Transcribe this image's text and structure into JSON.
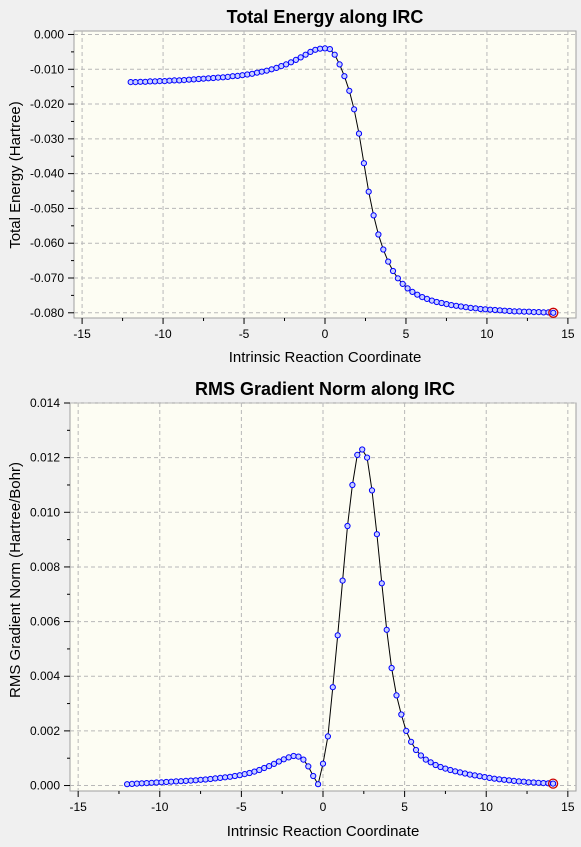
{
  "chart_data": [
    {
      "type": "line",
      "title": "Total Energy along IRC",
      "xlabel": "Intrinsic Reaction Coordinate",
      "ylabel": "Total Energy (Hartree)",
      "xlim": [
        -15.5,
        15.5
      ],
      "ylim": [
        -0.0815,
        0.001
      ],
      "xticks": [
        -15,
        -10,
        -5,
        0,
        5,
        10,
        15
      ],
      "xtick_labels": [
        "-15",
        "-10",
        "-5",
        "0",
        "5",
        "10",
        "15"
      ],
      "yticks": [
        0,
        -0.01,
        -0.02,
        -0.03,
        -0.04,
        -0.05,
        -0.06,
        -0.07,
        -0.08
      ],
      "ytick_labels": [
        "0.000",
        "-0.010",
        "-0.020",
        "-0.030",
        "-0.040",
        "-0.050",
        "-0.060",
        "-0.070",
        "-0.080"
      ],
      "grid": true,
      "series": [
        {
          "color": "#0000ff",
          "x": [
            -12.0,
            -11.7,
            -11.4,
            -11.1,
            -10.8,
            -10.5,
            -10.2,
            -9.9,
            -9.6,
            -9.3,
            -9.0,
            -8.7,
            -8.4,
            -8.1,
            -7.8,
            -7.5,
            -7.2,
            -6.9,
            -6.6,
            -6.3,
            -6.0,
            -5.7,
            -5.4,
            -5.1,
            -4.8,
            -4.5,
            -4.2,
            -3.9,
            -3.6,
            -3.3,
            -3.0,
            -2.7,
            -2.4,
            -2.1,
            -1.8,
            -1.5,
            -1.2,
            -0.9,
            -0.6,
            -0.3,
            0.0,
            0.3,
            0.6,
            0.9,
            1.2,
            1.5,
            1.8,
            2.1,
            2.4,
            2.7,
            3.0,
            3.3,
            3.6,
            3.9,
            4.2,
            4.5,
            4.8,
            5.1,
            5.4,
            5.7,
            6.0,
            6.3,
            6.6,
            6.9,
            7.2,
            7.5,
            7.8,
            8.1,
            8.4,
            8.7,
            9.0,
            9.3,
            9.6,
            9.9,
            10.2,
            10.5,
            10.8,
            11.1,
            11.4,
            11.7,
            12.0,
            12.3,
            12.6,
            12.9,
            13.2,
            13.5,
            13.8,
            14.1
          ],
          "y": [
            -0.0137,
            -0.0137,
            -0.0136,
            -0.0136,
            -0.0135,
            -0.0135,
            -0.0134,
            -0.0134,
            -0.0133,
            -0.0132,
            -0.0132,
            -0.0131,
            -0.013,
            -0.0129,
            -0.0128,
            -0.0127,
            -0.0126,
            -0.0125,
            -0.0124,
            -0.0123,
            -0.0122,
            -0.012,
            -0.0119,
            -0.0117,
            -0.0115,
            -0.0113,
            -0.011,
            -0.0107,
            -0.0104,
            -0.01,
            -0.0096,
            -0.0091,
            -0.0086,
            -0.008,
            -0.0073,
            -0.0066,
            -0.0058,
            -0.005,
            -0.0044,
            -0.0041,
            -0.004,
            -0.0042,
            -0.0058,
            -0.0086,
            -0.012,
            -0.0162,
            -0.0215,
            -0.0285,
            -0.037,
            -0.0452,
            -0.052,
            -0.0575,
            -0.0618,
            -0.0653,
            -0.068,
            -0.0701,
            -0.0717,
            -0.073,
            -0.074,
            -0.0748,
            -0.0755,
            -0.076,
            -0.0765,
            -0.0769,
            -0.0772,
            -0.0775,
            -0.0778,
            -0.078,
            -0.0782,
            -0.0784,
            -0.0786,
            -0.0787,
            -0.0789,
            -0.079,
            -0.0791,
            -0.0792,
            -0.0793,
            -0.0794,
            -0.0795,
            -0.0796,
            -0.0796,
            -0.0797,
            -0.0797,
            -0.0798,
            -0.0798,
            -0.0799,
            -0.0799,
            -0.08
          ],
          "highlight_last": "#cc0000"
        }
      ]
    },
    {
      "type": "line",
      "title": "RMS Gradient Norm along IRC",
      "xlabel": "Intrinsic Reaction Coordinate",
      "ylabel": "RMS Gradient Norm (Hartree/Bohr)",
      "xlim": [
        -15.5,
        15.5
      ],
      "ylim": [
        -0.0002,
        0.014
      ],
      "xticks": [
        -15,
        -10,
        -5,
        0,
        5,
        10,
        15
      ],
      "xtick_labels": [
        "-15",
        "-10",
        "-5",
        "0",
        "5",
        "10",
        "15"
      ],
      "yticks": [
        0,
        0.002,
        0.004,
        0.006,
        0.008,
        0.01,
        0.012,
        0.014
      ],
      "ytick_labels": [
        "0.000",
        "0.002",
        "0.004",
        "0.006",
        "0.008",
        "0.010",
        "0.012",
        "0.014"
      ],
      "grid": true,
      "series": [
        {
          "color": "#0000ff",
          "x": [
            -12.0,
            -11.7,
            -11.4,
            -11.1,
            -10.8,
            -10.5,
            -10.2,
            -9.9,
            -9.6,
            -9.3,
            -9.0,
            -8.7,
            -8.4,
            -8.1,
            -7.8,
            -7.5,
            -7.2,
            -6.9,
            -6.6,
            -6.3,
            -6.0,
            -5.7,
            -5.4,
            -5.1,
            -4.8,
            -4.5,
            -4.2,
            -3.9,
            -3.6,
            -3.3,
            -3.0,
            -2.7,
            -2.4,
            -2.1,
            -1.8,
            -1.5,
            -1.2,
            -0.9,
            -0.6,
            -0.3,
            0.0,
            0.3,
            0.6,
            0.9,
            1.2,
            1.5,
            1.8,
            2.1,
            2.4,
            2.7,
            3.0,
            3.3,
            3.6,
            3.9,
            4.2,
            4.5,
            4.8,
            5.1,
            5.4,
            5.7,
            6.0,
            6.3,
            6.6,
            6.9,
            7.2,
            7.5,
            7.8,
            8.1,
            8.4,
            8.7,
            9.0,
            9.3,
            9.6,
            9.9,
            10.2,
            10.5,
            10.8,
            11.1,
            11.4,
            11.7,
            12.0,
            12.3,
            12.6,
            12.9,
            13.2,
            13.5,
            13.8,
            14.1
          ],
          "y": [
            5e-05,
            6e-05,
            7e-05,
            8e-05,
            9e-05,
            0.0001,
            0.00011,
            0.00012,
            0.00013,
            0.00014,
            0.00015,
            0.00016,
            0.00017,
            0.00018,
            0.00019,
            0.00021,
            0.00022,
            0.00024,
            0.00026,
            0.00028,
            0.0003,
            0.00032,
            0.00035,
            0.00038,
            0.00042,
            0.00046,
            0.00051,
            0.00057,
            0.00064,
            0.00071,
            0.00079,
            0.00088,
            0.00096,
            0.00103,
            0.00108,
            0.00106,
            0.00095,
            0.0007,
            0.00035,
            5e-05,
            0.0008,
            0.0018,
            0.0036,
            0.0055,
            0.0075,
            0.0095,
            0.011,
            0.0121,
            0.0123,
            0.012,
            0.0108,
            0.0092,
            0.0074,
            0.0057,
            0.0043,
            0.0033,
            0.0026,
            0.002,
            0.0016,
            0.0013,
            0.0011,
            0.00095,
            0.00085,
            0.00075,
            0.00068,
            0.00062,
            0.00057,
            0.00052,
            0.00048,
            0.00044,
            0.0004,
            0.00037,
            0.00034,
            0.00031,
            0.00028,
            0.00025,
            0.00023,
            0.00021,
            0.00019,
            0.00017,
            0.00015,
            0.00014,
            0.00012,
            0.00011,
            0.0001,
            9e-05,
            8e-05,
            7e-05
          ],
          "highlight_last": "#cc0000"
        }
      ]
    }
  ]
}
